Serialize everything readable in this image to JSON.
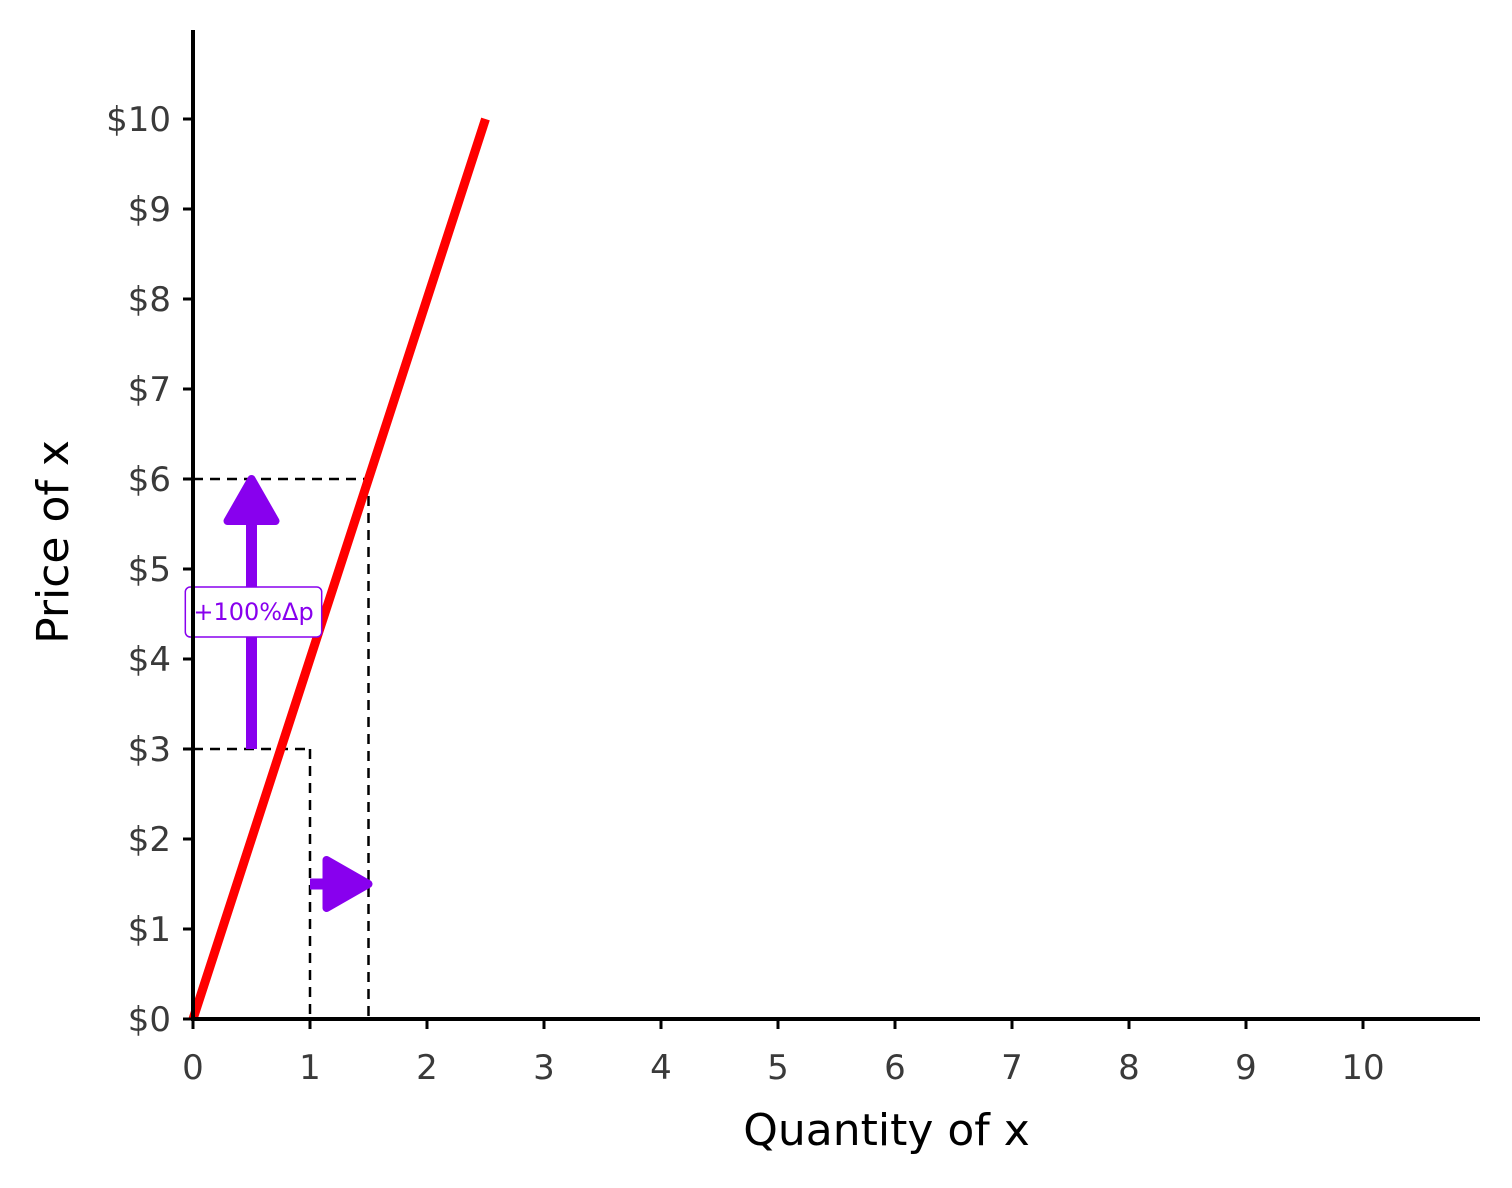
{
  "chart_data": {
    "type": "line",
    "xlabel": "Quantity of x",
    "ylabel": "Price of x",
    "xlim": [
      0,
      11
    ],
    "ylim": [
      0,
      11
    ],
    "x_ticks": [
      0,
      1,
      2,
      3,
      4,
      5,
      6,
      7,
      8,
      9,
      10
    ],
    "x_tick_labels": [
      "0",
      "1",
      "2",
      "3",
      "4",
      "5",
      "6",
      "7",
      "8",
      "9",
      "10"
    ],
    "y_ticks": [
      0,
      1,
      2,
      3,
      4,
      5,
      6,
      7,
      8,
      9,
      10
    ],
    "y_tick_labels": [
      "$0",
      "$1",
      "$2",
      "$3",
      "$4",
      "$5",
      "$6",
      "$7",
      "$8",
      "$9",
      "$10"
    ],
    "grid": false,
    "series": [
      {
        "x": [
          0,
          2.5
        ],
        "y": [
          0,
          10
        ],
        "color": "#ff0000"
      }
    ],
    "reference_points": [
      {
        "x": 1,
        "y": 3
      },
      {
        "x": 1.5,
        "y": 6
      }
    ],
    "annotations": [
      {
        "type": "arrow",
        "from": [
          0.5,
          3
        ],
        "to": [
          0.5,
          6
        ],
        "color": "#8800ee"
      },
      {
        "type": "arrow",
        "from": [
          1,
          1.5
        ],
        "to": [
          1.5,
          1.5
        ],
        "color": "#8800ee"
      },
      {
        "type": "label",
        "text": "+100%Δp",
        "x": 0.5,
        "y": 4.5,
        "color": "#8800ee"
      }
    ]
  }
}
